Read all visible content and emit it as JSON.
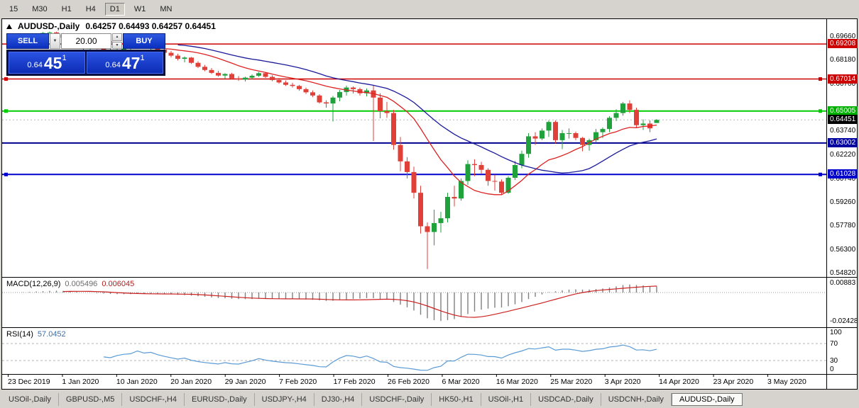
{
  "toolbar": {
    "timeframes": [
      {
        "label": "15",
        "active": false
      },
      {
        "label": "M30",
        "active": false
      },
      {
        "label": "H1",
        "active": false
      },
      {
        "label": "H4",
        "active": false
      },
      {
        "label": "D1",
        "active": true
      },
      {
        "label": "W1",
        "active": false
      },
      {
        "label": "MN",
        "active": false
      }
    ]
  },
  "chart": {
    "symbol_period": "AUDUSD-,Daily",
    "ohlc": "0.64257 0.64493 0.64257 0.64451"
  },
  "trade_panel": {
    "sell_label": "SELL",
    "buy_label": "BUY",
    "volume": "20.00",
    "dropdown_icon": "▼",
    "spin_up_icon": "▲",
    "spin_down_icon": "▼",
    "sell_price": {
      "prefix": "0.64",
      "big": "45",
      "sup": "1"
    },
    "buy_price": {
      "prefix": "0.64",
      "big": "47",
      "sup": "1"
    }
  },
  "price_scale": {
    "labels": [
      0.6966,
      0.6818,
      0.667,
      0.6374,
      0.6222,
      0.6074,
      0.5926,
      0.5778,
      0.563,
      0.5482
    ],
    "badges": [
      {
        "label": "0.69208",
        "value": 0.69208,
        "color": "#cc0000"
      },
      {
        "label": "0.67014",
        "value": 0.67014,
        "color": "#cc0000"
      },
      {
        "label": "0.65005",
        "value": 0.65005,
        "color": "#00b000"
      },
      {
        "label": "0.64451",
        "value": 0.64451,
        "color": "#000000"
      },
      {
        "label": "0.63002",
        "value": 0.63002,
        "color": "#0000a0"
      },
      {
        "label": "0.61028",
        "value": 0.61028,
        "color": "#0000cc"
      }
    ]
  },
  "chart_data": {
    "type": "candlestick",
    "symbol": "AUDUSD",
    "period": "Daily",
    "visible_price_range": [
      0.5482,
      0.6966
    ],
    "current_price": 0.64451,
    "up_color": "#1fa23c",
    "down_color": "#e04038",
    "levels": [
      {
        "value": 0.69208,
        "color": "#cc0000",
        "width": 1.5,
        "handles": false
      },
      {
        "value": 0.67014,
        "color": "#cc0000",
        "width": 1.5,
        "handles": true
      },
      {
        "value": 0.65005,
        "color": "#00cc00",
        "width": 2,
        "handles": true
      },
      {
        "value": 0.63002,
        "color": "#000090",
        "width": 2,
        "handles": false
      },
      {
        "value": 0.61028,
        "color": "#0000cc",
        "width": 2,
        "handles": true
      }
    ],
    "ma": [
      {
        "period": 13,
        "color": "#dd2222"
      },
      {
        "period": 26,
        "color": "#1a1a99"
      }
    ],
    "date_labels": [
      "23 Dec 2019",
      "1 Jan 2020",
      "10 Jan 2020",
      "20 Jan 2020",
      "29 Jan 2020",
      "7 Feb 2020",
      "17 Feb 2020",
      "26 Feb 2020",
      "6 Mar 2020",
      "16 Mar 2020",
      "25 Mar 2020",
      "3 Apr 2020",
      "14 Apr 2020",
      "23 Apr 2020",
      "3 May 2020"
    ],
    "candles": [
      [
        0.6905,
        0.693,
        0.6895,
        0.6925
      ],
      [
        0.6925,
        0.6942,
        0.6912,
        0.6938
      ],
      [
        0.6938,
        0.6955,
        0.6928,
        0.6948
      ],
      [
        0.6948,
        0.6968,
        0.694,
        0.696
      ],
      [
        0.696,
        0.6988,
        0.6952,
        0.6982
      ],
      [
        0.6982,
        0.6996,
        0.6975,
        0.699
      ],
      [
        0.699,
        0.6999,
        0.6982,
        0.6994
      ],
      [
        0.6994,
        0.6998,
        0.697,
        0.698
      ],
      [
        0.698,
        0.699,
        0.6952,
        0.696
      ],
      [
        0.696,
        0.6972,
        0.693,
        0.694
      ],
      [
        0.694,
        0.6952,
        0.6902,
        0.691
      ],
      [
        0.691,
        0.6925,
        0.6886,
        0.6893
      ],
      [
        0.6893,
        0.6916,
        0.6883,
        0.6906
      ],
      [
        0.6906,
        0.692,
        0.6888,
        0.6896
      ],
      [
        0.6896,
        0.6908,
        0.6866,
        0.6876
      ],
      [
        0.6876,
        0.6893,
        0.6858,
        0.6866
      ],
      [
        0.6866,
        0.689,
        0.686,
        0.6883
      ],
      [
        0.6883,
        0.69,
        0.687,
        0.6893
      ],
      [
        0.6893,
        0.691,
        0.688,
        0.6898
      ],
      [
        0.6898,
        0.693,
        0.689,
        0.6923
      ],
      [
        0.6923,
        0.6928,
        0.6893,
        0.6903
      ],
      [
        0.6903,
        0.6916,
        0.6883,
        0.691
      ],
      [
        0.691,
        0.6918,
        0.6876,
        0.6886
      ],
      [
        0.6886,
        0.6896,
        0.6856,
        0.6866
      ],
      [
        0.6866,
        0.6878,
        0.6838,
        0.6848
      ],
      [
        0.6848,
        0.686,
        0.6818,
        0.6828
      ],
      [
        0.6828,
        0.6843,
        0.6806,
        0.6836
      ],
      [
        0.6836,
        0.684,
        0.6796,
        0.6803
      ],
      [
        0.6803,
        0.6813,
        0.677,
        0.6778
      ],
      [
        0.6778,
        0.679,
        0.675,
        0.6758
      ],
      [
        0.6758,
        0.677,
        0.6733,
        0.674
      ],
      [
        0.674,
        0.6753,
        0.6716,
        0.6723
      ],
      [
        0.6723,
        0.6738,
        0.6703,
        0.6733
      ],
      [
        0.6733,
        0.674,
        0.6698,
        0.6706
      ],
      [
        0.6706,
        0.672,
        0.669,
        0.6698
      ],
      [
        0.6698,
        0.6716,
        0.6686,
        0.671
      ],
      [
        0.671,
        0.673,
        0.67,
        0.6722
      ],
      [
        0.6722,
        0.6745,
        0.6715,
        0.6738
      ],
      [
        0.6738,
        0.6742,
        0.6708,
        0.6715
      ],
      [
        0.6715,
        0.6725,
        0.6688,
        0.6695
      ],
      [
        0.6695,
        0.6708,
        0.6672,
        0.668
      ],
      [
        0.668,
        0.6692,
        0.6658,
        0.6665
      ],
      [
        0.6665,
        0.6678,
        0.6648,
        0.6658
      ],
      [
        0.6658,
        0.6665,
        0.6628,
        0.6638
      ],
      [
        0.6638,
        0.6648,
        0.6608,
        0.6618
      ],
      [
        0.6618,
        0.663,
        0.6588,
        0.6598
      ],
      [
        0.6598,
        0.6606,
        0.6548,
        0.6555
      ],
      [
        0.6555,
        0.6568,
        0.6522,
        0.6548
      ],
      [
        0.6548,
        0.6595,
        0.6435,
        0.6585
      ],
      [
        0.6585,
        0.6632,
        0.6562,
        0.662
      ],
      [
        0.662,
        0.666,
        0.6598,
        0.6648
      ],
      [
        0.6648,
        0.6655,
        0.661,
        0.6638
      ],
      [
        0.6638,
        0.6648,
        0.6598,
        0.6612
      ],
      [
        0.6612,
        0.6642,
        0.6592,
        0.663
      ],
      [
        0.663,
        0.6662,
        0.6313,
        0.6585
      ],
      [
        0.6585,
        0.6612,
        0.6455,
        0.65
      ],
      [
        0.65,
        0.6558,
        0.6458,
        0.6488
      ],
      [
        0.6488,
        0.6508,
        0.6258,
        0.6288
      ],
      [
        0.6288,
        0.6338,
        0.6123,
        0.6185
      ],
      [
        0.6185,
        0.6212,
        0.6078,
        0.6118
      ],
      [
        0.6118,
        0.6152,
        0.5952,
        0.5988
      ],
      [
        0.5988,
        0.6032,
        0.5732,
        0.5778
      ],
      [
        0.5778,
        0.5802,
        0.551,
        0.5742
      ],
      [
        0.5742,
        0.5882,
        0.5658,
        0.5798
      ],
      [
        0.5798,
        0.5868,
        0.5738,
        0.5828
      ],
      [
        0.5828,
        0.5988,
        0.5802,
        0.5962
      ],
      [
        0.5962,
        0.6032,
        0.5902,
        0.5952
      ],
      [
        0.5952,
        0.6078,
        0.5938,
        0.6062
      ],
      [
        0.6062,
        0.6192,
        0.6038,
        0.6168
      ],
      [
        0.6168,
        0.6198,
        0.6092,
        0.6162
      ],
      [
        0.6162,
        0.6182,
        0.6108,
        0.6132
      ],
      [
        0.6132,
        0.6142,
        0.6032,
        0.6062
      ],
      [
        0.6062,
        0.6102,
        0.6002,
        0.6058
      ],
      [
        0.6058,
        0.6072,
        0.5978,
        0.5988
      ],
      [
        0.5988,
        0.6092,
        0.5982,
        0.6082
      ],
      [
        0.6082,
        0.6188,
        0.6068,
        0.6162
      ],
      [
        0.6162,
        0.6252,
        0.6142,
        0.6232
      ],
      [
        0.6232,
        0.6362,
        0.6208,
        0.6342
      ],
      [
        0.6342,
        0.6368,
        0.6288,
        0.6328
      ],
      [
        0.6328,
        0.6392,
        0.6318,
        0.6378
      ],
      [
        0.6378,
        0.6442,
        0.6338,
        0.6432
      ],
      [
        0.6432,
        0.6442,
        0.6298,
        0.6318
      ],
      [
        0.6318,
        0.6382,
        0.6262,
        0.6362
      ],
      [
        0.6362,
        0.6392,
        0.6328,
        0.6362
      ],
      [
        0.6362,
        0.6372,
        0.6318,
        0.6332
      ],
      [
        0.6332,
        0.6338,
        0.6248,
        0.6288
      ],
      [
        0.6288,
        0.6328,
        0.6252,
        0.6318
      ],
      [
        0.6318,
        0.6388,
        0.6302,
        0.6368
      ],
      [
        0.6368,
        0.6398,
        0.6332,
        0.6388
      ],
      [
        0.6388,
        0.6468,
        0.6368,
        0.6458
      ],
      [
        0.6458,
        0.6512,
        0.6438,
        0.6488
      ],
      [
        0.6488,
        0.6558,
        0.6472,
        0.6548
      ],
      [
        0.6548,
        0.6568,
        0.6488,
        0.6508
      ],
      [
        0.6508,
        0.6522,
        0.6398,
        0.6412
      ],
      [
        0.6412,
        0.6448,
        0.6382,
        0.6422
      ],
      [
        0.6422,
        0.6442,
        0.6368,
        0.6392
      ],
      [
        0.64257,
        0.64493,
        0.64257,
        0.64451
      ]
    ]
  },
  "macd": {
    "name": "MACD(12,26,9)",
    "value_main": "0.005496",
    "value_signal": "0.006045",
    "scale_top": "0.00883",
    "scale_bottom": "-0.02428",
    "params": [
      12,
      26,
      9
    ]
  },
  "rsi": {
    "name": "RSI(14)",
    "value": "57.0452",
    "period": 14,
    "scale": [
      100,
      70,
      30,
      0
    ]
  },
  "tabs": [
    {
      "label": "USOil-,Daily",
      "active": false
    },
    {
      "label": "GBPUSD-,M5",
      "active": false
    },
    {
      "label": "USDCHF-,H4",
      "active": false
    },
    {
      "label": "EURUSD-,Daily",
      "active": false
    },
    {
      "label": "USDJPY-,H4",
      "active": false
    },
    {
      "label": "DJ30-,H4",
      "active": false
    },
    {
      "label": "USDCHF-,Daily",
      "active": false
    },
    {
      "label": "HK50-,H1",
      "active": false
    },
    {
      "label": "USOil-,H1",
      "active": false
    },
    {
      "label": "USDCAD-,Daily",
      "active": false
    },
    {
      "label": "USDCNH-,Daily",
      "active": false
    },
    {
      "label": "AUDUSD-,Daily",
      "active": true
    }
  ]
}
